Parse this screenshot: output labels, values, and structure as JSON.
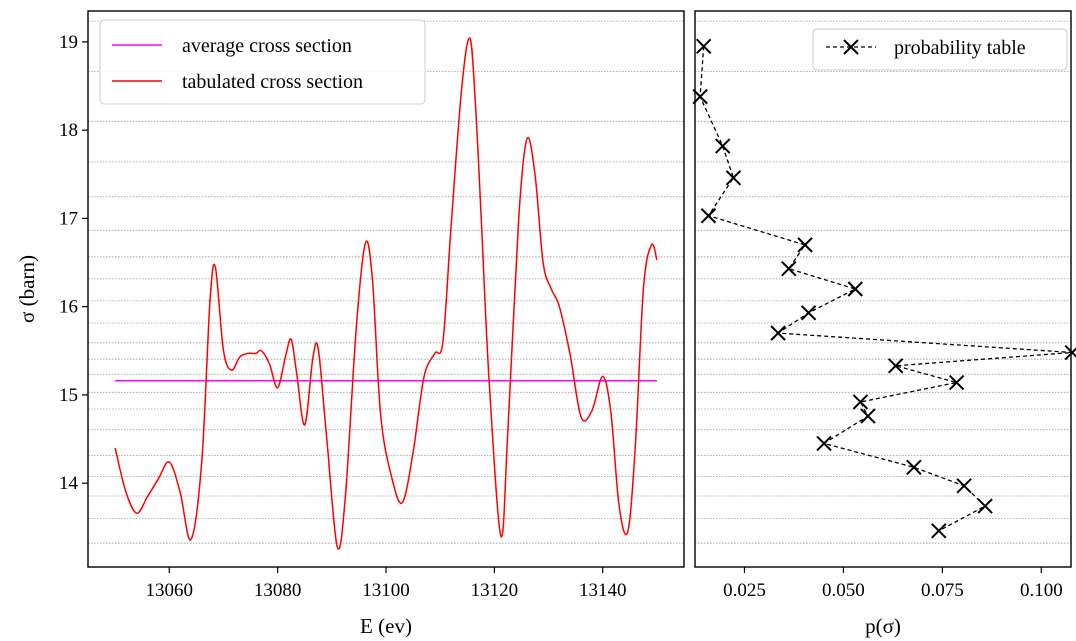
{
  "chart_data": [
    {
      "type": "line",
      "xlabel": "E (ev)",
      "ylabel": "σ (barn)",
      "xlim": [
        13045,
        13155
      ],
      "ylim": [
        13.05,
        19.35
      ],
      "xticks": [
        13060,
        13080,
        13100,
        13120,
        13140
      ],
      "yticks": [
        14,
        15,
        16,
        17,
        18,
        19
      ],
      "grid": "horizontal dotted lines at probability-table bin edges",
      "legend_position": "top-left",
      "series": [
        {
          "name": "average cross section",
          "color": "#ff00ff",
          "x": [
            13050,
            13150
          ],
          "y": [
            15.16,
            15.16
          ]
        },
        {
          "name": "tabulated cross section",
          "color": "#ff0000",
          "x": [
            13050,
            13052,
            13054,
            13056,
            13058,
            13060,
            13062,
            13064,
            13066,
            13067.5,
            13068.5,
            13070,
            13071.5,
            13073,
            13074.5,
            13076,
            13077,
            13078.5,
            13080,
            13081.5,
            13082.5,
            13083.5,
            13085,
            13086.5,
            13087.5,
            13089,
            13091,
            13092.5,
            13094.5,
            13096.2,
            13097.5,
            13099,
            13101,
            13103,
            13105,
            13107,
            13109,
            13110.5,
            13112,
            13114,
            13115.5,
            13116.5,
            13117.5,
            13119,
            13121.2,
            13122.5,
            13124.5,
            13126,
            13127.5,
            13129,
            13130.5,
            13132,
            13134,
            13136,
            13138,
            13140,
            13141.5,
            13143,
            13144.6,
            13146,
            13147.5,
            13149,
            13150
          ],
          "y": [
            14.4,
            13.9,
            13.66,
            13.85,
            14.05,
            14.24,
            13.9,
            13.36,
            14.25,
            16.05,
            16.45,
            15.5,
            15.28,
            15.43,
            15.47,
            15.47,
            15.5,
            15.35,
            15.08,
            15.45,
            15.63,
            15.25,
            14.66,
            15.42,
            15.52,
            14.55,
            13.28,
            13.85,
            15.75,
            16.72,
            16.3,
            14.78,
            14.08,
            13.78,
            14.35,
            15.2,
            15.47,
            15.6,
            16.9,
            18.5,
            19.04,
            18.3,
            17.1,
            15.2,
            13.4,
            14.6,
            17.0,
            17.9,
            17.5,
            16.5,
            16.2,
            16.0,
            15.45,
            14.75,
            14.82,
            15.21,
            14.8,
            13.75,
            13.45,
            14.4,
            16.2,
            16.7,
            16.53
          ]
        }
      ]
    },
    {
      "type": "line",
      "xlabel": "p(σ)",
      "ylabel": "",
      "xlim": [
        0.0125,
        0.1075
      ],
      "ylim": [
        13.05,
        19.35
      ],
      "xticks": [
        "0.025",
        "0.050",
        "0.075",
        "0.100"
      ],
      "legend_position": "top-right",
      "series": [
        {
          "name": "probability table",
          "color": "#000000",
          "linestyle": "dashed",
          "marker": "x",
          "x": [
            0.0147,
            0.0138,
            0.0195,
            0.0222,
            0.0159,
            0.0403,
            0.0362,
            0.053,
            0.0412,
            0.0335,
            0.1078,
            0.0632,
            0.0786,
            0.0543,
            0.0562,
            0.0451,
            0.0678,
            0.0805,
            0.0858,
            0.0741
          ],
          "y": [
            18.95,
            18.38,
            17.82,
            17.46,
            17.03,
            16.7,
            16.43,
            16.2,
            15.93,
            15.7,
            15.48,
            15.33,
            15.14,
            14.92,
            14.76,
            14.45,
            14.18,
            13.97,
            13.74,
            13.46
          ]
        }
      ]
    }
  ]
}
